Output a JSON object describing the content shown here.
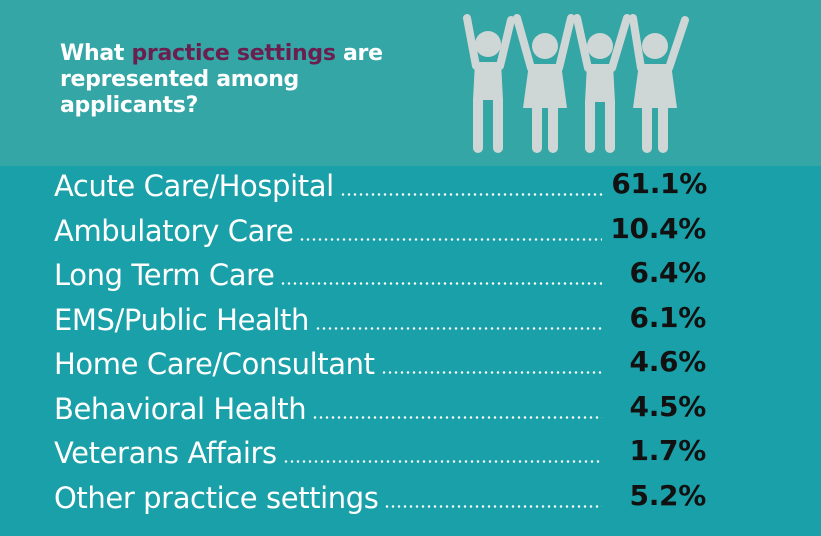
{
  "header": {
    "question_part1": "What ",
    "question_highlight": "practice settings",
    "question_part2": "are represented among applicants?",
    "highlight_color": "#6b1f4e",
    "icon": "people-holding-hands-icon"
  },
  "settings": [
    {
      "label": "Acute Care/Hospital",
      "value": "61.1%"
    },
    {
      "label": "Ambulatory Care",
      "value": "10.4%"
    },
    {
      "label": "Long Term Care",
      "value": "6.4%"
    },
    {
      "label": "EMS/Public Health",
      "value": "6.1%"
    },
    {
      "label": "Home Care/Consultant",
      "value": "4.6%"
    },
    {
      "label": "Behavioral Health",
      "value": "4.5%"
    },
    {
      "label": "Veterans Affairs",
      "value": "1.7%"
    },
    {
      "label": "Other practice settings",
      "value": "5.2%"
    }
  ]
}
